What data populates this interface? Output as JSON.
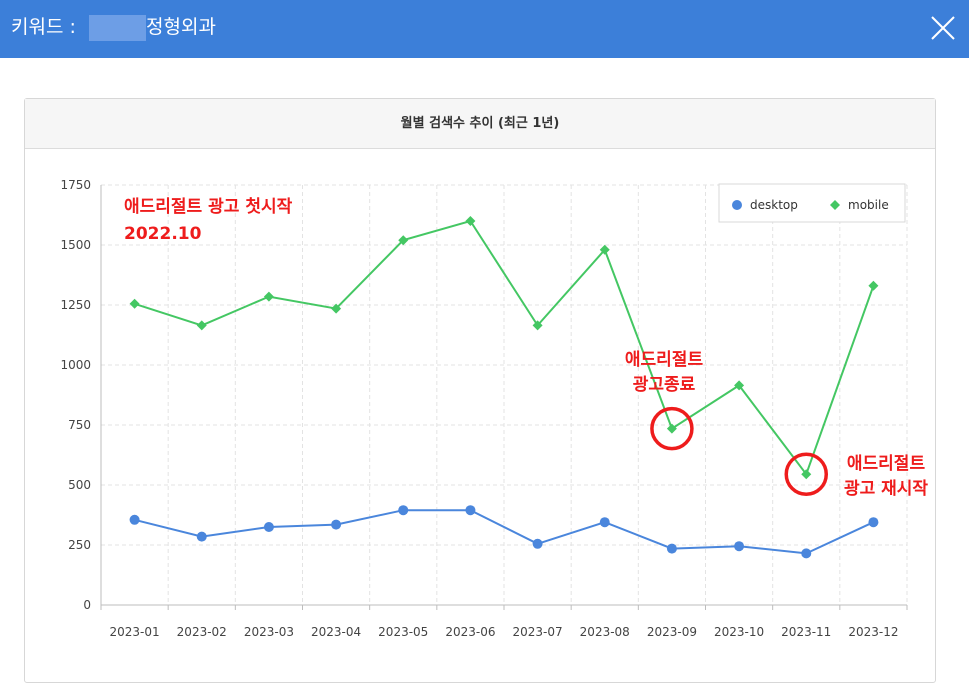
{
  "dialog": {
    "keyword_label": "키워드 :",
    "keyword_value": "정형외과",
    "close_icon": "close-x-icon"
  },
  "chart_panel": {
    "title": "월별 검색수 추이 (최근 1년)"
  },
  "colors": {
    "header": "#3c7fd9",
    "desktop": "#4a86dc",
    "mobile": "#44c763",
    "annotation": "#ee1c1c"
  },
  "chart_data": {
    "type": "line",
    "title": "월별 검색수 추이 (최근 1년)",
    "categories": [
      "2023-01",
      "2023-02",
      "2023-03",
      "2023-04",
      "2023-05",
      "2023-06",
      "2023-07",
      "2023-08",
      "2023-09",
      "2023-10",
      "2023-11",
      "2023-12"
    ],
    "series": [
      {
        "name": "desktop",
        "marker": "circle",
        "values": [
          355,
          285,
          325,
          335,
          395,
          395,
          255,
          345,
          235,
          245,
          215,
          345
        ]
      },
      {
        "name": "mobile",
        "marker": "diamond",
        "values": [
          1255,
          1165,
          1285,
          1235,
          1520,
          1600,
          1165,
          1480,
          735,
          915,
          545,
          1330
        ]
      }
    ],
    "ylim": [
      0,
      1750
    ],
    "yticks": [
      0,
      250,
      500,
      750,
      1000,
      1250,
      1500,
      1750
    ],
    "xlabel": "",
    "ylabel": "",
    "grid": true,
    "legend": "top-right",
    "annotations": [
      {
        "lines": [
          "애드리절트 광고 첫시작",
          "2022.10"
        ]
      },
      {
        "lines": [
          "애드리절트",
          "광고종료"
        ],
        "circled_category": "2023-09",
        "circled_series": "mobile"
      },
      {
        "lines": [
          "애드리절트",
          "광고 재시작"
        ],
        "circled_category": "2023-11",
        "circled_series": "mobile"
      }
    ]
  }
}
